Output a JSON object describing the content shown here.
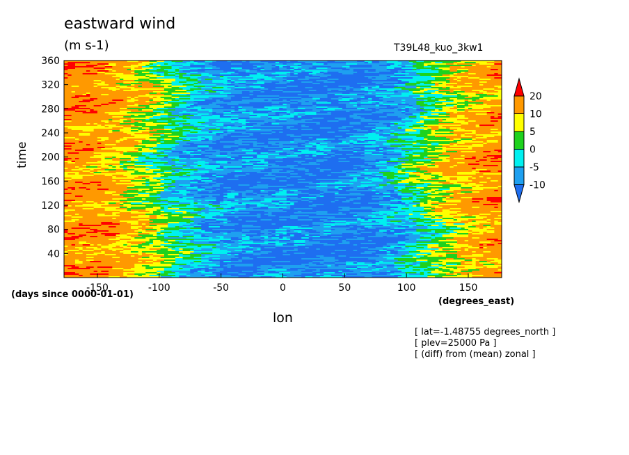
{
  "chart_data": {
    "type": "heatmap",
    "title": "eastward wind",
    "units": "(m s-1)",
    "run_name": "T39L48_kuo_3kw1",
    "xlabel": "lon",
    "ylabel": "time",
    "x_units": "(degrees_east)",
    "y_units": "(days since 0000-01-01)",
    "xlim": [
      -177,
      177
    ],
    "ylim": [
      0,
      360
    ],
    "x_ticks": [
      -150,
      -100,
      -50,
      0,
      50,
      100,
      150
    ],
    "x_tick_labels": [
      "-150",
      "-100",
      "-50",
      "0",
      "50",
      "100",
      "150"
    ],
    "y_ticks": [
      40,
      80,
      120,
      160,
      200,
      240,
      280,
      320,
      360
    ],
    "y_tick_labels": [
      "40",
      "80",
      "120",
      "160",
      "200",
      "240",
      "280",
      "320",
      "360"
    ],
    "colorbar": {
      "levels": [
        -10,
        -5,
        0,
        5,
        10,
        20
      ],
      "level_labels": [
        "-10",
        "-5",
        "0",
        "5",
        "10",
        "20"
      ],
      "colors": [
        "#1e6ef0",
        "#1ea0f0",
        "#00f0f0",
        "#1ed21e",
        "#ffff00",
        "#ff9900",
        "#ff0000"
      ]
    },
    "pattern": {
      "description_free_fields": true,
      "mean_profile_lon": [
        -177,
        -150,
        -120,
        -100,
        -80,
        -50,
        -20,
        0,
        25,
        50,
        80,
        100,
        120,
        150,
        177
      ],
      "mean_profile_u": [
        16,
        14,
        8,
        2,
        -4,
        -9,
        -10,
        -10,
        -11,
        -11,
        -8,
        -2,
        5,
        12,
        16
      ]
    },
    "annotations": [
      "[ lat=-1.48755 degrees_north ]",
      "[ plev=25000 Pa ]",
      "[ (diff) from (mean) zonal ]"
    ]
  }
}
